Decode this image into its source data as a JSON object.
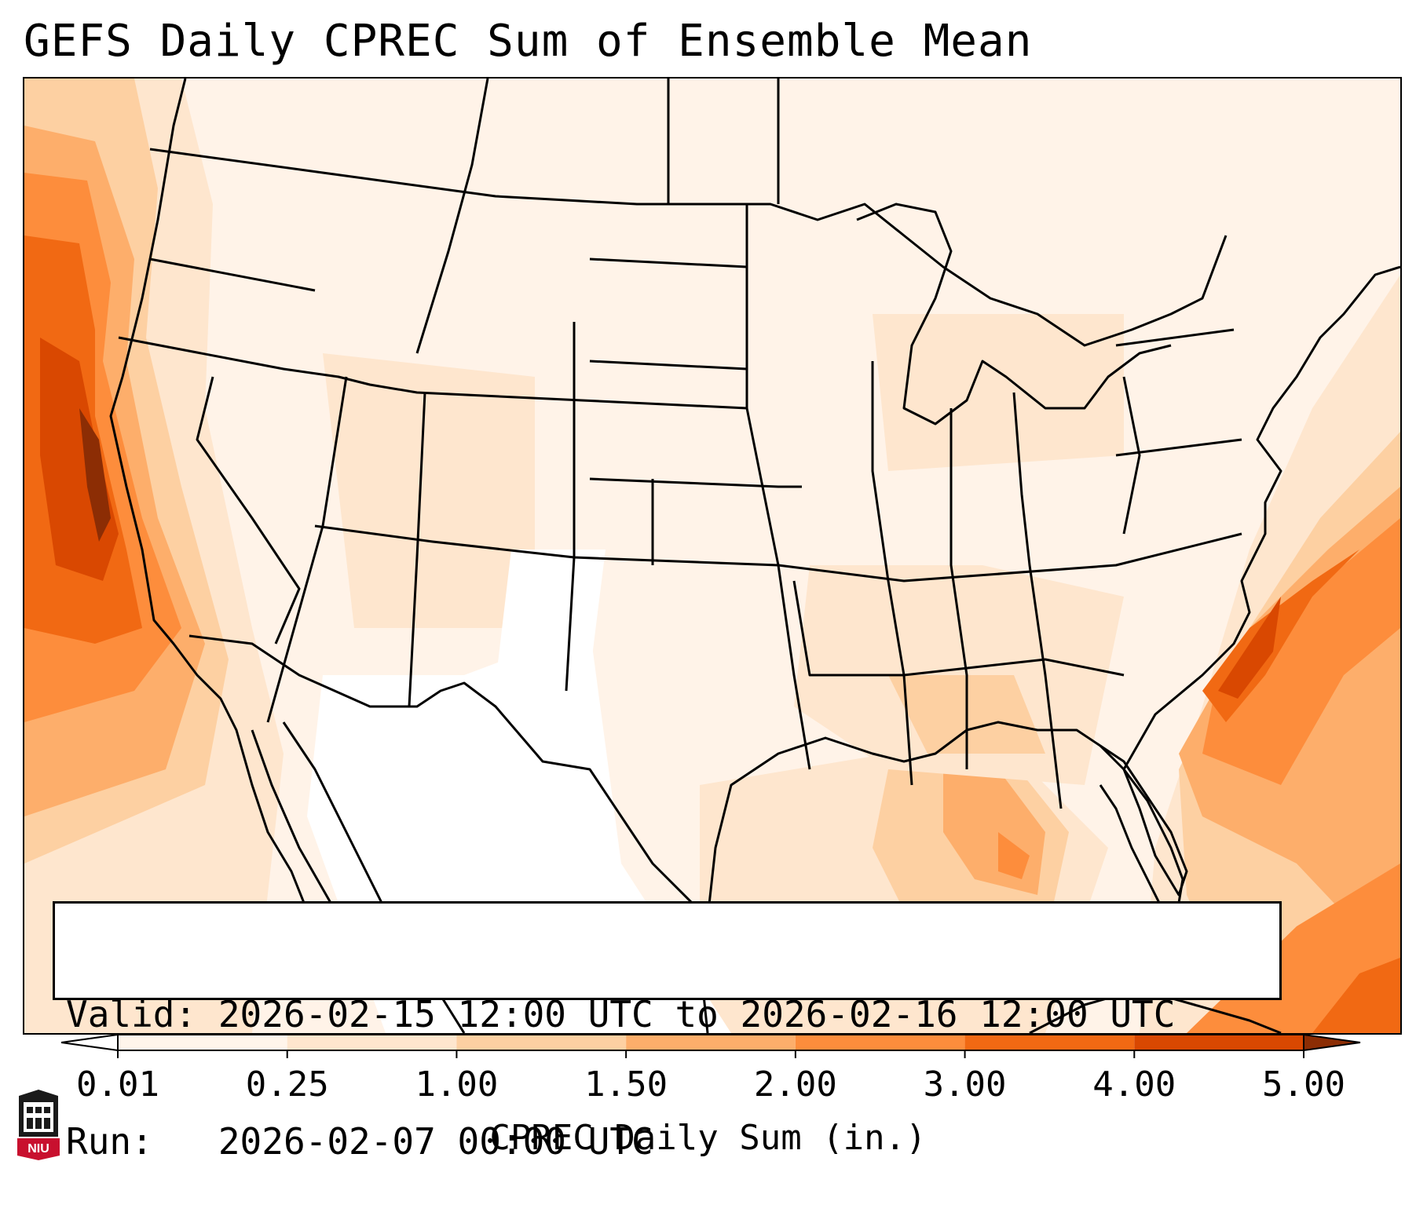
{
  "title": "GEFS Daily CPREC Sum of Ensemble Mean",
  "info": {
    "valid_line": "Valid: 2026-02-15 12:00 UTC to 2026-02-16 12:00 UTC",
    "run_line": "Run:   2026-02-07 00:00 UTC"
  },
  "colorbar": {
    "label": "CPREC Daily Sum (in.)",
    "ticks": [
      "0.01",
      "0.25",
      "1.00",
      "1.50",
      "2.00",
      "3.00",
      "4.00",
      "5.00"
    ],
    "colors": [
      "#fff5eb",
      "#fee6ce",
      "#fdd0a2",
      "#fdae6b",
      "#fd8d3c",
      "#f16913",
      "#d94801",
      "#8c2d04"
    ],
    "under_color": "#ffffff",
    "over_color": "#8c2d04"
  },
  "logo": {
    "icon": "niu-logo-icon",
    "text": "NIU",
    "color": "#c8102e"
  }
}
